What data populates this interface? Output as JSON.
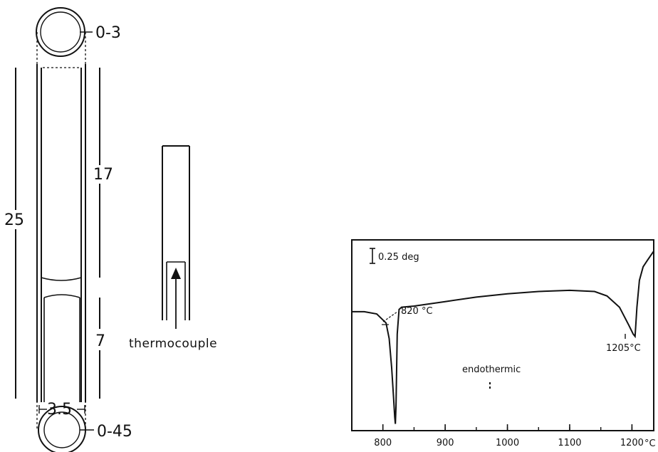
{
  "crucible_diagram": {
    "dim_wall_thickness": "0-3",
    "dim_total_length": "25",
    "dim_upper_length": "17",
    "dim_lower_length": "7",
    "dim_diameter": "3.5",
    "dim_base_thickness": "0-45"
  },
  "sample_holder": {
    "label": "thermocouple"
  },
  "dta_curve": {
    "scale_label": "0.25 deg",
    "peak1_label": "820 °C",
    "peak2_label": "1205°C",
    "direction_label": "endothermic",
    "x_unit": "°C",
    "x_tick_labels": [
      "800",
      "900",
      "1000",
      "1100",
      "1200"
    ]
  },
  "chart_data": {
    "type": "line",
    "title": "",
    "xlabel": "°C",
    "ylabel": "",
    "xlim": [
      750,
      1235
    ],
    "ylim": [
      -5.3,
      3.2
    ],
    "x_ticks": [
      800,
      900,
      1000,
      1100,
      1200
    ],
    "series": [
      {
        "x": [
          750,
          770,
          790,
          805,
          810,
          814,
          817,
          819,
          820,
          821,
          823,
          826,
          830,
          850,
          900,
          950,
          1000,
          1050,
          1100,
          1140,
          1160,
          1180,
          1195,
          1202,
          1205,
          1208,
          1212,
          1218,
          1225,
          1235
        ],
        "y": [
          0,
          0,
          -0.1,
          -0.5,
          -1.2,
          -2.5,
          -3.8,
          -4.7,
          -5.0,
          -4.2,
          -1.0,
          0.1,
          0.2,
          0.25,
          0.45,
          0.65,
          0.8,
          0.9,
          0.95,
          0.9,
          0.7,
          0.2,
          -0.6,
          -1.0,
          -1.1,
          0.2,
          1.4,
          2.0,
          2.3,
          2.7
        ]
      }
    ],
    "annotations": [
      "0.25 deg",
      "820 °C",
      "1205°C",
      "endothermic"
    ]
  }
}
